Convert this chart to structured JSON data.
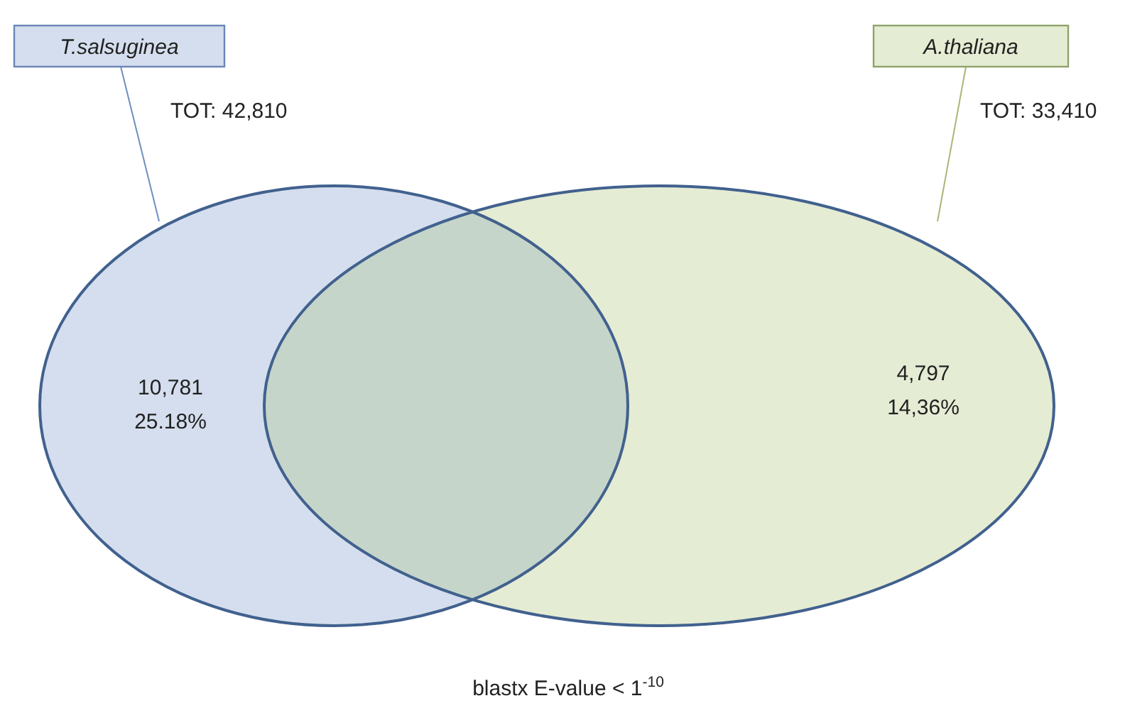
{
  "chart_data": {
    "type": "other",
    "categories": [
      "T.salsuginea",
      "A.thaliana"
    ],
    "values": [
      10781,
      4797
    ],
    "value_labels": [
      "10,781",
      "4,797"
    ],
    "colors": [
      "#d4deee",
      "#e5ecd4"
    ],
    "annotations": [
      "TOT: 42,810",
      "TOT: 33,410",
      "25.18%",
      "14,36%",
      "blastx E-value < 1$^{-10}$"
    ]
  }
}
